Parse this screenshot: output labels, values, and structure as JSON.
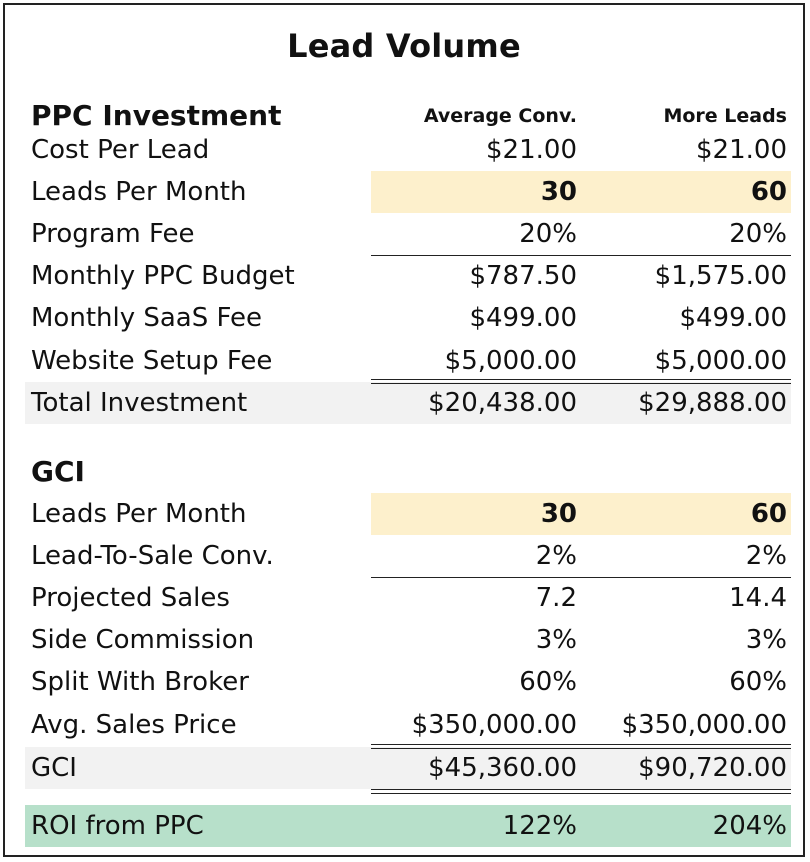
{
  "title": "Lead Volume",
  "ppc": {
    "section_title": "PPC Investment",
    "col_a_header": "Average Conv.",
    "col_b_header": "More Leads",
    "rows": [
      {
        "label": "Cost Per Lead",
        "a": "$21.00",
        "b": "$21.00"
      },
      {
        "label": "Leads Per Month",
        "a": "30",
        "b": "60"
      },
      {
        "label": "Program Fee",
        "a": "20%",
        "b": "20%"
      },
      {
        "label": "Monthly PPC Budget",
        "a": "$787.50",
        "b": "$1,575.00"
      },
      {
        "label": "Monthly SaaS Fee",
        "a": "$499.00",
        "b": "$499.00"
      },
      {
        "label": "Website Setup Fee",
        "a": "$5,000.00",
        "b": "$5,000.00"
      },
      {
        "label": "Total Investment",
        "a": "$20,438.00",
        "b": "$29,888.00"
      }
    ]
  },
  "gci": {
    "section_title": "GCI",
    "rows": [
      {
        "label": "Leads Per Month",
        "a": "30",
        "b": "60"
      },
      {
        "label": "Lead-To-Sale Conv.",
        "a": "2%",
        "b": "2%"
      },
      {
        "label": "Projected Sales",
        "a": "7.2",
        "b": "14.4"
      },
      {
        "label": "Side Commission",
        "a": "3%",
        "b": "3%"
      },
      {
        "label": "Split With Broker",
        "a": "60%",
        "b": "60%"
      },
      {
        "label": "Avg. Sales Price",
        "a": "$350,000.00",
        "b": "$350,000.00"
      },
      {
        "label": "GCI",
        "a": "$45,360.00",
        "b": "$90,720.00"
      }
    ]
  },
  "roi": {
    "label": "ROI from PPC",
    "a": "122%",
    "b": "204%"
  },
  "colors": {
    "highlight_yellow": "#fdf0cc",
    "total_grey": "#f2f2f2",
    "roi_green": "#b7e0ca"
  }
}
